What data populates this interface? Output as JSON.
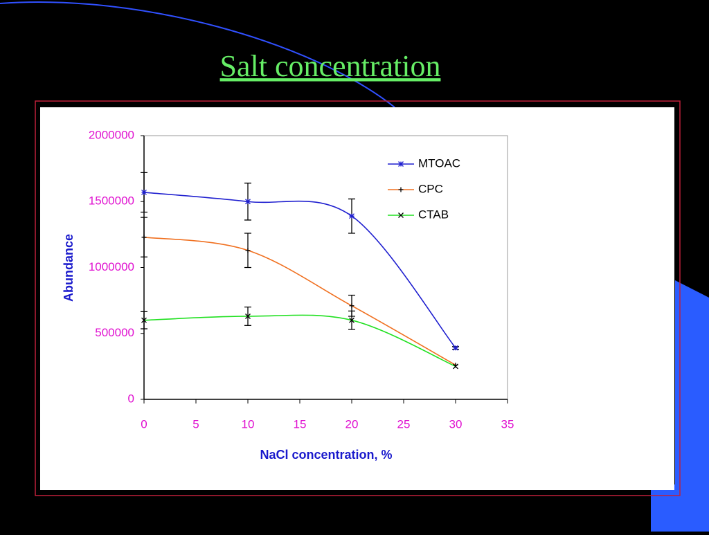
{
  "chart_data": {
    "type": "line",
    "title": "Salt concentration",
    "x_label": "NaCl concentration, %",
    "y_label": "Abundance",
    "x": [
      0,
      10,
      20,
      30
    ],
    "series": [
      {
        "name": "MTOAC",
        "color": "#1f1fcf",
        "marker": "asterisk",
        "values": [
          1570000,
          1500000,
          1390000,
          390000
        ],
        "errors": [
          150000,
          140000,
          130000,
          10000
        ]
      },
      {
        "name": "CPC",
        "color": "#f07020",
        "marker": "plus",
        "values": [
          1230000,
          1130000,
          710000,
          260000
        ],
        "errors": [
          150000,
          130000,
          80000,
          0
        ]
      },
      {
        "name": "CTAB",
        "color": "#20e020",
        "marker": "x",
        "values": [
          600000,
          630000,
          600000,
          250000
        ],
        "errors": [
          65000,
          70000,
          70000,
          0
        ]
      }
    ],
    "xlim": [
      0,
      35
    ],
    "xticks": [
      0,
      5,
      10,
      15,
      20,
      25,
      30,
      35
    ],
    "ylim": [
      0,
      2000000
    ],
    "yticks": [
      0,
      500000,
      1000000,
      1500000,
      2000000
    ],
    "grid": false,
    "legend": "upper right"
  }
}
